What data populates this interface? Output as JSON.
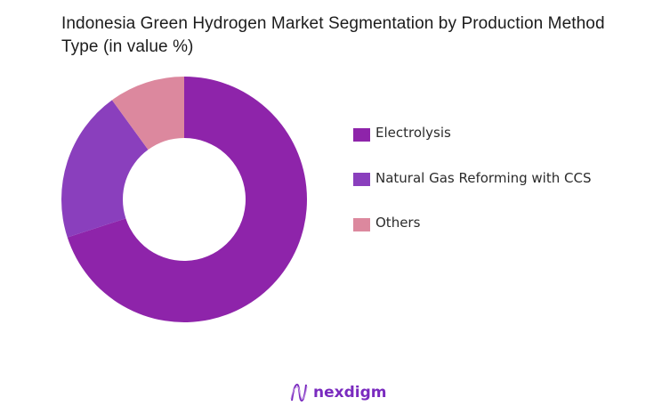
{
  "title": "Indonesia Green Hydrogen Market Segmentation by Production Method Type (in value %)",
  "chart_data": {
    "type": "pie",
    "variant": "donut",
    "title": "Indonesia Green Hydrogen Market Segmentation by Production Method Type (in value %)",
    "categories": [
      "Electrolysis",
      "Natural Gas Reforming with CCS",
      "Others"
    ],
    "values": [
      70,
      20,
      10
    ],
    "colors": [
      "#8e24aa",
      "#8a3fbd",
      "#dc889e"
    ],
    "legend_position": "right",
    "start_angle": "12 o'clock",
    "direction": "clockwise"
  },
  "legend": {
    "items": [
      {
        "label": "Electrolysis",
        "color": "#8e24aa"
      },
      {
        "label": "Natural Gas Reforming with CCS",
        "color": "#8a3fbd"
      },
      {
        "label": "Others",
        "color": "#dc889e"
      }
    ]
  },
  "logo": {
    "text": "nexdigm",
    "color": "#7a2bbf"
  }
}
